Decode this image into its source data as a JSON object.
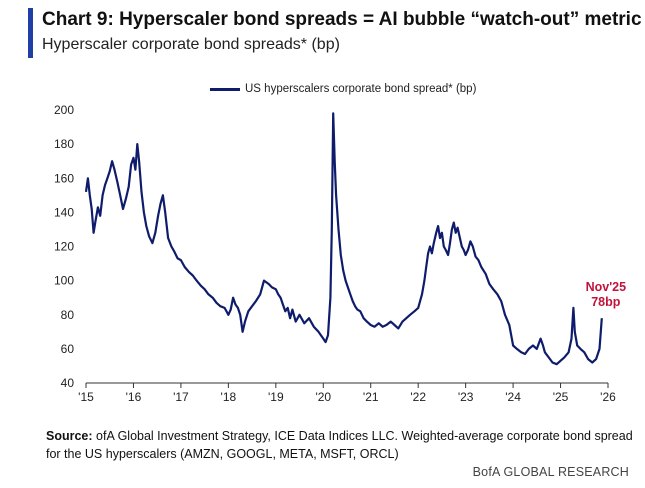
{
  "header": {
    "title": "Chart 9: Hyperscaler bond spreads = AI bubble “watch-out” metric",
    "subtitle": "Hyperscaler corporate bond spreads* (bp)"
  },
  "source": {
    "label": "Source:",
    "text": " ofA Global Investment Strategy, ICE Data Indices LLC. Weighted-average corporate bond spread for the US hyperscalers (AMZN, GOOGL, META, MSFT, ORCL)"
  },
  "footer": {
    "brand": "BofA GLOBAL RESEARCH"
  },
  "colors": {
    "line": "#0f1c6b",
    "annotation": "#c0143c",
    "accent": "#1f3fa6"
  },
  "chart_data": {
    "type": "line",
    "title": "Chart 9: Hyperscaler bond spreads = AI bubble “watch-out” metric",
    "subtitle": "Hyperscaler corporate bond spreads* (bp)",
    "xlabel": "",
    "ylabel": "",
    "ylim": [
      40,
      200
    ],
    "yticks": [
      "40",
      "60",
      "80",
      "100",
      "120",
      "140",
      "160",
      "180",
      "200"
    ],
    "xlim": [
      2015,
      2026
    ],
    "xticks": [
      {
        "x": 2015,
        "label": "'15"
      },
      {
        "x": 2016,
        "label": "'16"
      },
      {
        "x": 2017,
        "label": "'17"
      },
      {
        "x": 2018,
        "label": "'18"
      },
      {
        "x": 2019,
        "label": "'19"
      },
      {
        "x": 2020,
        "label": "'20"
      },
      {
        "x": 2021,
        "label": "'21"
      },
      {
        "x": 2022,
        "label": "'22"
      },
      {
        "x": 2023,
        "label": "'23"
      },
      {
        "x": 2024,
        "label": "'24"
      },
      {
        "x": 2025,
        "label": "'25"
      },
      {
        "x": 2026,
        "label": "'26"
      }
    ],
    "grid": false,
    "legend": {
      "position": "top",
      "entries": [
        "US hyperscalers corporate bond spread* (bp)"
      ]
    },
    "annotation": {
      "x": 2025.87,
      "y": 78,
      "line1": "Nov'25",
      "line2": "78bp"
    },
    "series": [
      {
        "name": "US hyperscalers corporate bond spread* (bp)",
        "points": [
          [
            2015.0,
            152
          ],
          [
            2015.04,
            160
          ],
          [
            2015.08,
            150
          ],
          [
            2015.12,
            142
          ],
          [
            2015.16,
            128
          ],
          [
            2015.2,
            135
          ],
          [
            2015.25,
            143
          ],
          [
            2015.3,
            138
          ],
          [
            2015.35,
            150
          ],
          [
            2015.4,
            156
          ],
          [
            2015.45,
            160
          ],
          [
            2015.5,
            164
          ],
          [
            2015.55,
            170
          ],
          [
            2015.6,
            165
          ],
          [
            2015.66,
            158
          ],
          [
            2015.72,
            150
          ],
          [
            2015.78,
            142
          ],
          [
            2015.84,
            148
          ],
          [
            2015.9,
            155
          ],
          [
            2015.95,
            168
          ],
          [
            2016.0,
            172
          ],
          [
            2016.04,
            165
          ],
          [
            2016.08,
            180
          ],
          [
            2016.12,
            170
          ],
          [
            2016.17,
            152
          ],
          [
            2016.22,
            140
          ],
          [
            2016.27,
            132
          ],
          [
            2016.33,
            126
          ],
          [
            2016.4,
            122
          ],
          [
            2016.46,
            128
          ],
          [
            2016.52,
            138
          ],
          [
            2016.57,
            145
          ],
          [
            2016.62,
            150
          ],
          [
            2016.67,
            140
          ],
          [
            2016.73,
            125
          ],
          [
            2016.8,
            120
          ],
          [
            2016.86,
            117
          ],
          [
            2016.93,
            113
          ],
          [
            2017.0,
            112
          ],
          [
            2017.08,
            108
          ],
          [
            2017.17,
            105
          ],
          [
            2017.25,
            103
          ],
          [
            2017.33,
            100
          ],
          [
            2017.42,
            97
          ],
          [
            2017.5,
            95
          ],
          [
            2017.58,
            92
          ],
          [
            2017.67,
            90
          ],
          [
            2017.75,
            87
          ],
          [
            2017.83,
            85
          ],
          [
            2017.92,
            84
          ],
          [
            2018.0,
            80
          ],
          [
            2018.05,
            83
          ],
          [
            2018.1,
            90
          ],
          [
            2018.15,
            86
          ],
          [
            2018.2,
            84
          ],
          [
            2018.25,
            80
          ],
          [
            2018.3,
            70
          ],
          [
            2018.35,
            76
          ],
          [
            2018.42,
            82
          ],
          [
            2018.5,
            85
          ],
          [
            2018.58,
            88
          ],
          [
            2018.67,
            92
          ],
          [
            2018.75,
            100
          ],
          [
            2018.85,
            98
          ],
          [
            2018.92,
            96
          ],
          [
            2019.0,
            95
          ],
          [
            2019.05,
            92
          ],
          [
            2019.1,
            90
          ],
          [
            2019.15,
            86
          ],
          [
            2019.2,
            82
          ],
          [
            2019.25,
            84
          ],
          [
            2019.3,
            78
          ],
          [
            2019.35,
            83
          ],
          [
            2019.42,
            76
          ],
          [
            2019.5,
            80
          ],
          [
            2019.6,
            75
          ],
          [
            2019.7,
            78
          ],
          [
            2019.8,
            73
          ],
          [
            2019.9,
            70
          ],
          [
            2019.95,
            68
          ],
          [
            2020.0,
            66
          ],
          [
            2020.05,
            64
          ],
          [
            2020.1,
            68
          ],
          [
            2020.15,
            90
          ],
          [
            2020.18,
            130
          ],
          [
            2020.21,
            198
          ],
          [
            2020.24,
            170
          ],
          [
            2020.27,
            150
          ],
          [
            2020.32,
            130
          ],
          [
            2020.37,
            115
          ],
          [
            2020.42,
            106
          ],
          [
            2020.47,
            100
          ],
          [
            2020.52,
            96
          ],
          [
            2020.57,
            92
          ],
          [
            2020.62,
            88
          ],
          [
            2020.67,
            85
          ],
          [
            2020.72,
            83
          ],
          [
            2020.78,
            82
          ],
          [
            2020.85,
            78
          ],
          [
            2020.92,
            76
          ],
          [
            2021.0,
            74
          ],
          [
            2021.08,
            73
          ],
          [
            2021.17,
            75
          ],
          [
            2021.25,
            73
          ],
          [
            2021.33,
            74
          ],
          [
            2021.42,
            76
          ],
          [
            2021.5,
            74
          ],
          [
            2021.58,
            72
          ],
          [
            2021.67,
            76
          ],
          [
            2021.75,
            78
          ],
          [
            2021.83,
            80
          ],
          [
            2021.92,
            82
          ],
          [
            2022.0,
            84
          ],
          [
            2022.04,
            88
          ],
          [
            2022.08,
            92
          ],
          [
            2022.13,
            100
          ],
          [
            2022.17,
            108
          ],
          [
            2022.21,
            116
          ],
          [
            2022.25,
            120
          ],
          [
            2022.29,
            116
          ],
          [
            2022.33,
            122
          ],
          [
            2022.38,
            128
          ],
          [
            2022.42,
            132
          ],
          [
            2022.46,
            125
          ],
          [
            2022.5,
            128
          ],
          [
            2022.54,
            120
          ],
          [
            2022.58,
            118
          ],
          [
            2022.63,
            115
          ],
          [
            2022.67,
            122
          ],
          [
            2022.71,
            130
          ],
          [
            2022.75,
            134
          ],
          [
            2022.79,
            128
          ],
          [
            2022.83,
            131
          ],
          [
            2022.88,
            125
          ],
          [
            2022.92,
            120
          ],
          [
            2022.96,
            118
          ],
          [
            2023.0,
            115
          ],
          [
            2023.05,
            118
          ],
          [
            2023.1,
            123
          ],
          [
            2023.15,
            120
          ],
          [
            2023.21,
            114
          ],
          [
            2023.27,
            112
          ],
          [
            2023.33,
            108
          ],
          [
            2023.42,
            104
          ],
          [
            2023.5,
            98
          ],
          [
            2023.58,
            95
          ],
          [
            2023.67,
            92
          ],
          [
            2023.75,
            88
          ],
          [
            2023.83,
            80
          ],
          [
            2023.92,
            74
          ],
          [
            2023.96,
            68
          ],
          [
            2024.0,
            62
          ],
          [
            2024.08,
            60
          ],
          [
            2024.17,
            58
          ],
          [
            2024.25,
            57
          ],
          [
            2024.33,
            60
          ],
          [
            2024.42,
            62
          ],
          [
            2024.5,
            60
          ],
          [
            2024.58,
            66
          ],
          [
            2024.63,
            62
          ],
          [
            2024.67,
            58
          ],
          [
            2024.75,
            55
          ],
          [
            2024.83,
            52
          ],
          [
            2024.92,
            51
          ],
          [
            2025.0,
            53
          ],
          [
            2025.08,
            55
          ],
          [
            2025.17,
            58
          ],
          [
            2025.23,
            66
          ],
          [
            2025.27,
            84
          ],
          [
            2025.3,
            70
          ],
          [
            2025.35,
            62
          ],
          [
            2025.42,
            60
          ],
          [
            2025.5,
            58
          ],
          [
            2025.58,
            54
          ],
          [
            2025.67,
            52
          ],
          [
            2025.75,
            54
          ],
          [
            2025.82,
            60
          ],
          [
            2025.87,
            78
          ]
        ]
      }
    ]
  }
}
